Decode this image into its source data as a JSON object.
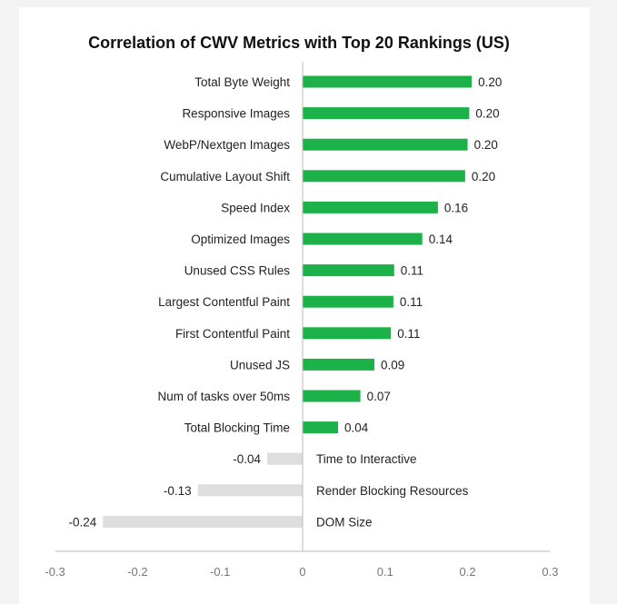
{
  "chart_data": {
    "type": "bar",
    "orientation": "horizontal",
    "title": "Correlation of CWV Metrics with Top 20 Rankings (US)",
    "xlabel": "",
    "ylabel": "",
    "xlim": [
      -0.3,
      0.3
    ],
    "x_ticks": [
      "-0.3",
      "-0.2",
      "-0.1",
      "0",
      "0.1",
      "0.2",
      "0.3"
    ],
    "grid": false,
    "categories": [
      "Total Byte Weight",
      "Responsive Images",
      "WebP/Nextgen Images",
      "Cumulative Layout Shift",
      "Speed Index",
      "Optimized Images",
      "Unused CSS Rules",
      "Largest Contentful Paint",
      "First Contentful Paint",
      "Unused JS",
      "Num of tasks over 50ms",
      "Total Blocking Time",
      "Time to Interactive",
      "Render Blocking Resources",
      "DOM Size"
    ],
    "values": [
      0.205,
      0.202,
      0.2,
      0.197,
      0.164,
      0.145,
      0.111,
      0.11,
      0.107,
      0.087,
      0.07,
      0.043,
      -0.043,
      -0.127,
      -0.242
    ],
    "value_labels": [
      "0.20",
      "0.20",
      "0.20",
      "0.20",
      "0.16",
      "0.14",
      "0.11",
      "0.11",
      "0.11",
      "0.09",
      "0.07",
      "0.04",
      "-0.04",
      "-0.13",
      "-0.24"
    ],
    "colors": {
      "positive": "#1db249",
      "negative": "#dedede",
      "axis": "#bbbbbb"
    }
  }
}
